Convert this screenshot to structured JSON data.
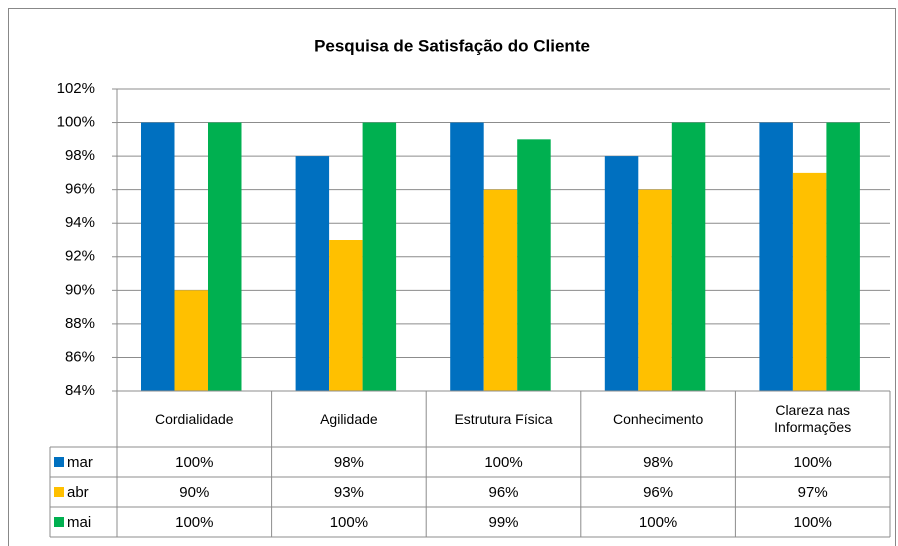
{
  "chart_data": {
    "type": "bar",
    "title": "Pesquisa de Satisfação do Cliente",
    "categories": [
      "Cordialidade",
      "Agilidade",
      "Estrutura Física",
      "Conhecimento",
      "Clareza nas Informações"
    ],
    "series": [
      {
        "name": "mar",
        "color": "#0070c0",
        "values": [
          100,
          98,
          100,
          98,
          100
        ],
        "value_labels": [
          "100%",
          "98%",
          "100%",
          "98%",
          "100%"
        ]
      },
      {
        "name": "abr",
        "color": "#ffc000",
        "values": [
          90,
          93,
          96,
          96,
          97
        ],
        "value_labels": [
          "90%",
          "93%",
          "96%",
          "96%",
          "97%"
        ]
      },
      {
        "name": "mai",
        "color": "#00b050",
        "values": [
          100,
          100,
          99,
          100,
          100
        ],
        "value_labels": [
          "100%",
          "100%",
          "99%",
          "100%",
          "100%"
        ]
      }
    ],
    "ylim": [
      84,
      102
    ],
    "yticks": [
      {
        "value": 84,
        "label": "84%"
      },
      {
        "value": 86,
        "label": "86%"
      },
      {
        "value": 88,
        "label": "88%"
      },
      {
        "value": 90,
        "label": "90%"
      },
      {
        "value": 92,
        "label": "92%"
      },
      {
        "value": 94,
        "label": "94%"
      },
      {
        "value": 96,
        "label": "96%"
      },
      {
        "value": 98,
        "label": "98%"
      },
      {
        "value": 100,
        "label": "100%"
      },
      {
        "value": 102,
        "label": "102%"
      }
    ],
    "grid": true
  }
}
